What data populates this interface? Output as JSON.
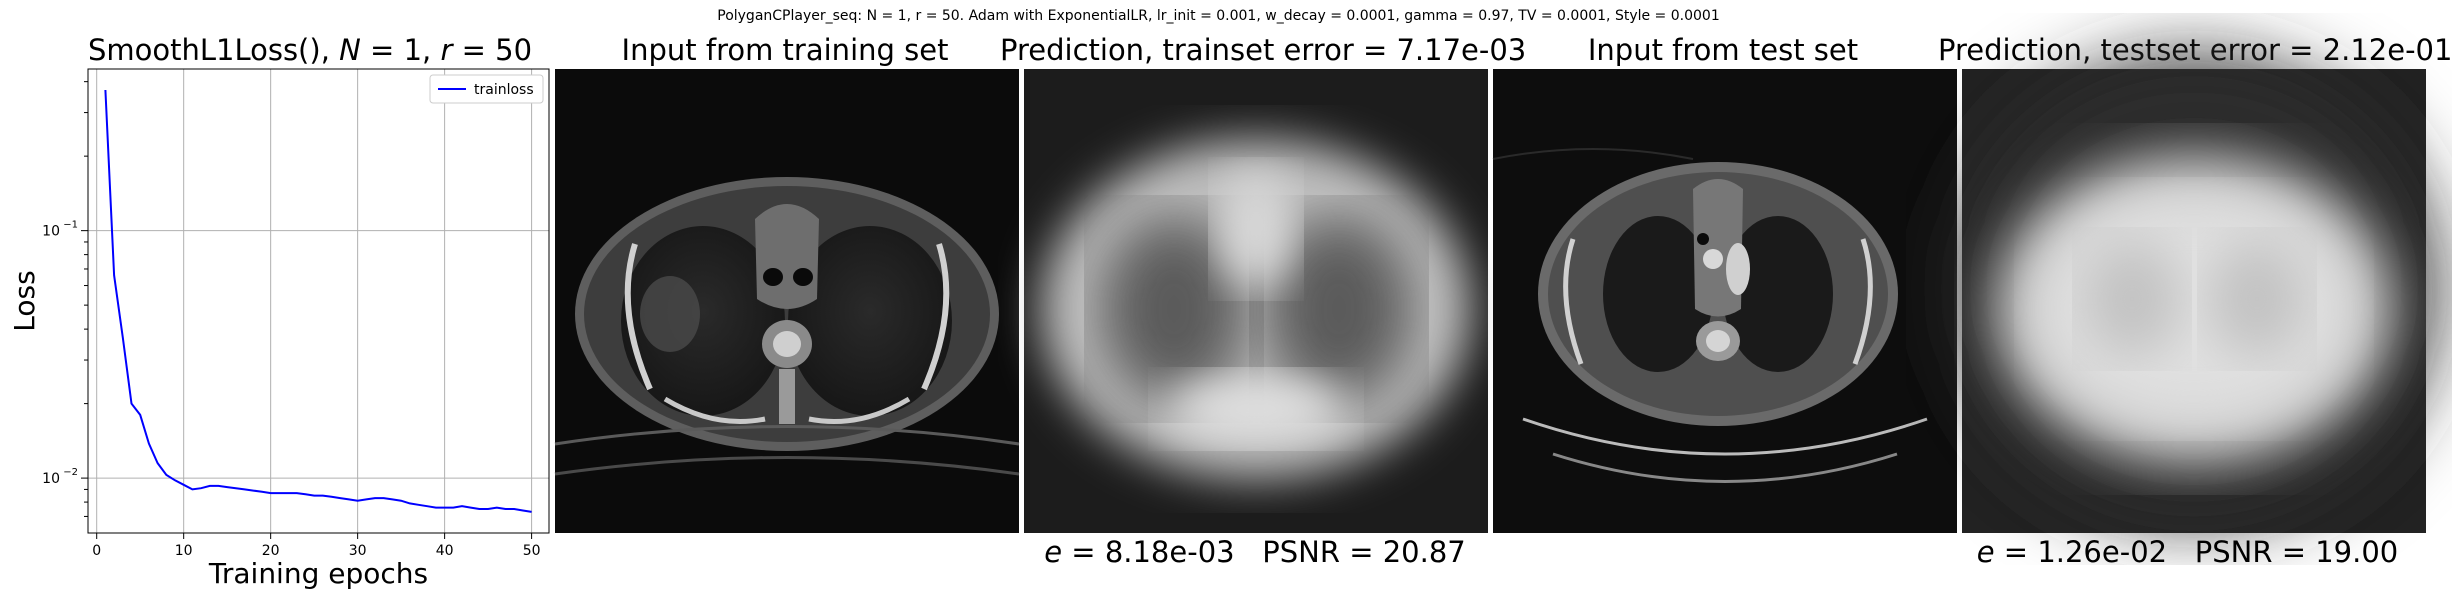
{
  "suptitle": "PolyganCPlayer_seq: N = 1, r = 50. Adam with ExponentialLR, lr_init = 0.001, w_decay = 0.0001, gamma = 0.97, TV = 0.0001, Style = 0.0001",
  "loss_panel": {
    "title_prefix": "SmoothL1Loss(), ",
    "title_n": "N",
    "title_mid": " = 1, ",
    "title_r": "r",
    "title_suffix": " = 50"
  },
  "panels": {
    "train_input": {
      "title": "Input from training set"
    },
    "train_pred": {
      "title": "Prediction, trainset error = 7.17e-03",
      "caption_e": "e",
      "caption_rest": " = 8.18e-03   PSNR = 20.87"
    },
    "test_input": {
      "title": "Input from test set"
    },
    "test_pred": {
      "title": "Prediction, testset error = 2.12e-01",
      "caption_e": "e",
      "caption_rest": " = 1.26e-02   PSNR = 19.00"
    }
  },
  "chart_data": {
    "type": "line",
    "title": "SmoothL1Loss(), N = 1, r = 50",
    "xlabel": "Training epochs",
    "ylabel": "Loss",
    "yscale": "log",
    "xlim": [
      -1,
      52
    ],
    "ylim": [
      0.006,
      0.45
    ],
    "grid": true,
    "legend": "top-right",
    "xticks": [
      0,
      10,
      20,
      30,
      40,
      50
    ],
    "yticks": [
      {
        "value": 0.1,
        "base": "10",
        "exp": "−1"
      },
      {
        "value": 0.01,
        "base": "10",
        "exp": "−2"
      }
    ],
    "series": [
      {
        "name": "trainloss",
        "color": "#0000ff",
        "x": [
          1,
          2,
          3,
          4,
          5,
          6,
          7,
          8,
          9,
          10,
          11,
          12,
          13,
          14,
          15,
          16,
          17,
          18,
          19,
          20,
          21,
          22,
          23,
          24,
          25,
          26,
          27,
          28,
          29,
          30,
          31,
          32,
          33,
          34,
          35,
          36,
          37,
          38,
          39,
          40,
          41,
          42,
          43,
          44,
          45,
          46,
          47,
          48,
          49,
          50
        ],
        "y": [
          0.37,
          0.066,
          0.037,
          0.02,
          0.018,
          0.0138,
          0.0115,
          0.0103,
          0.0098,
          0.0094,
          0.009,
          0.0091,
          0.0093,
          0.0093,
          0.0092,
          0.0091,
          0.009,
          0.0089,
          0.0088,
          0.0087,
          0.0087,
          0.0087,
          0.0087,
          0.0086,
          0.0085,
          0.0085,
          0.0084,
          0.0083,
          0.0082,
          0.0081,
          0.0082,
          0.0083,
          0.0083,
          0.0082,
          0.0081,
          0.0079,
          0.0078,
          0.0077,
          0.0076,
          0.0076,
          0.0076,
          0.0077,
          0.0076,
          0.0075,
          0.0075,
          0.0076,
          0.0075,
          0.0075,
          0.0074,
          0.0073
        ]
      }
    ]
  }
}
